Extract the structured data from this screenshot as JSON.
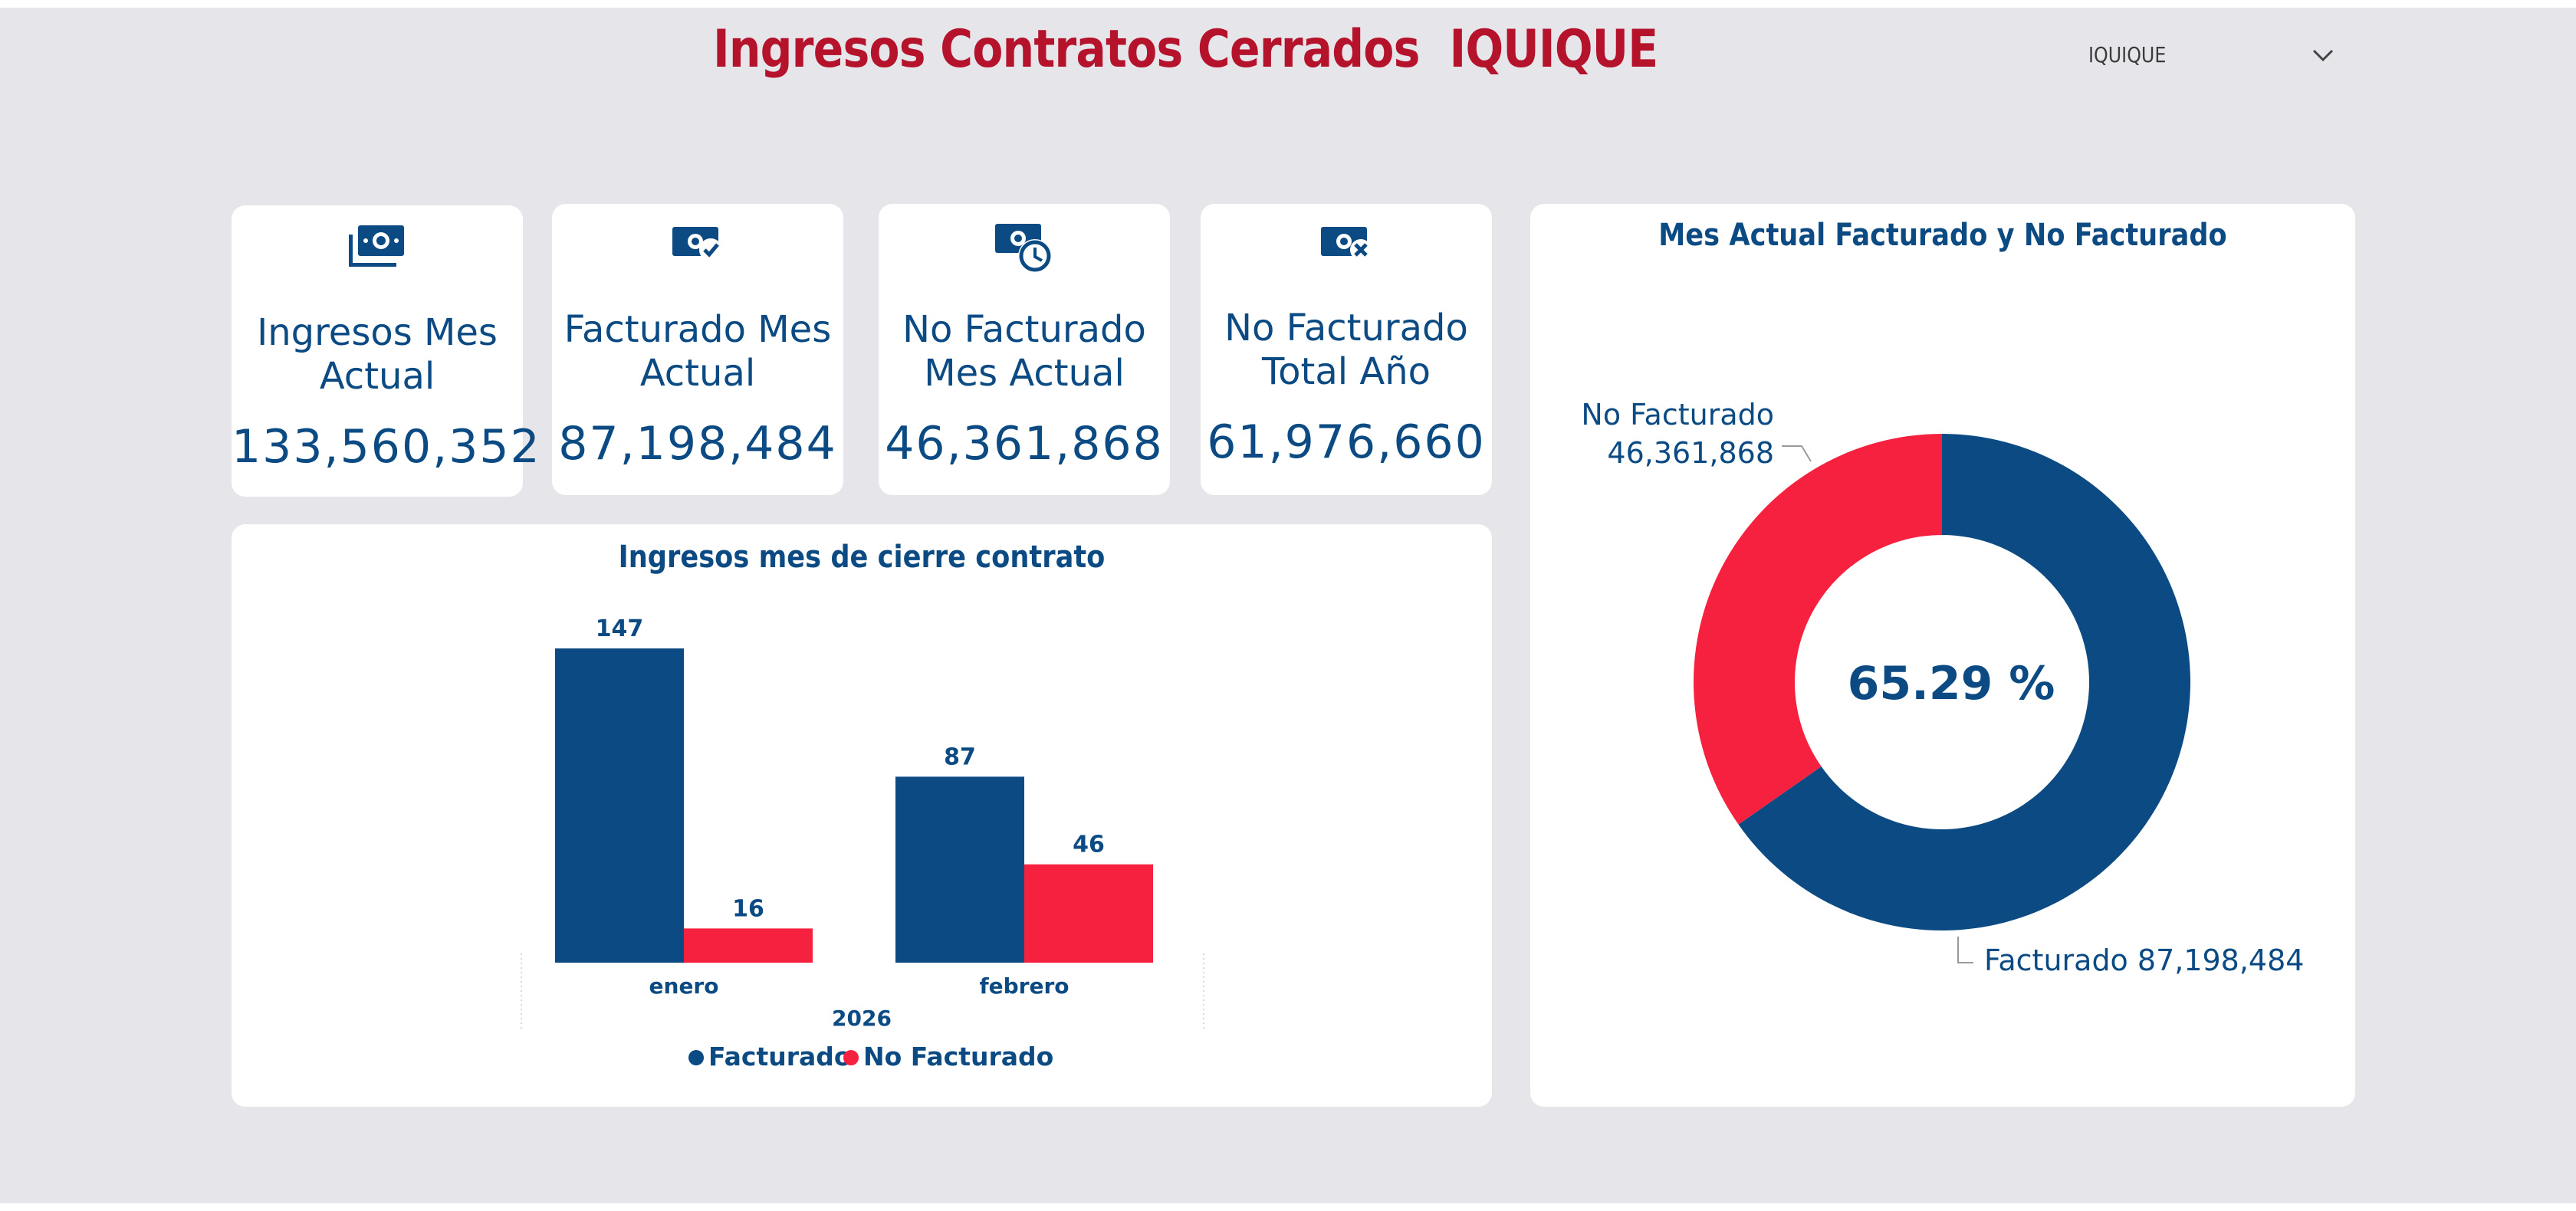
{
  "header": {
    "title": "Ingresos Contratos Cerrados  IQUIQUE",
    "slicer_value": "IQUIQUE"
  },
  "colors": {
    "title": "#b5122b",
    "primary": "#0b4a82",
    "facturado": "#0b4a82",
    "no_facturado": "#f5213f",
    "background": "#e6e5ea",
    "card": "#ffffff"
  },
  "kpis": [
    {
      "icon": "money-stack-icon",
      "label_line1": "Ingresos Mes",
      "label_line2": "Actual",
      "value": "133,560,352"
    },
    {
      "icon": "money-check-icon",
      "label_line1": "Facturado Mes",
      "label_line2": "Actual",
      "value": "87,198,484"
    },
    {
      "icon": "money-clock-icon",
      "label_line1": "No Facturado",
      "label_line2": "Mes Actual",
      "value": "46,361,868"
    },
    {
      "icon": "money-x-icon",
      "label_line1": "No Facturado",
      "label_line2": "Total Año",
      "value": "61,976,660"
    }
  ],
  "chart_data": [
    {
      "type": "bar",
      "title": "Ingresos mes de cierre contrato",
      "categories": [
        "enero",
        "febrero"
      ],
      "group_label": "2026",
      "series": [
        {
          "name": "Facturado",
          "values": [
            147,
            87
          ]
        },
        {
          "name": "No Facturado",
          "values": [
            16,
            46
          ]
        }
      ],
      "ylim": [
        0,
        147
      ],
      "legend_position": "bottom-center",
      "grid": false
    },
    {
      "type": "pie",
      "title": "Mes Actual Facturado y No Facturado",
      "donut": true,
      "center_label": "65.29 %",
      "slices": [
        {
          "name": "Facturado",
          "value": 87198484,
          "value_label": "87,198,484"
        },
        {
          "name": "No Facturado",
          "value": 46361868,
          "value_label": "46,361,868"
        }
      ]
    }
  ]
}
